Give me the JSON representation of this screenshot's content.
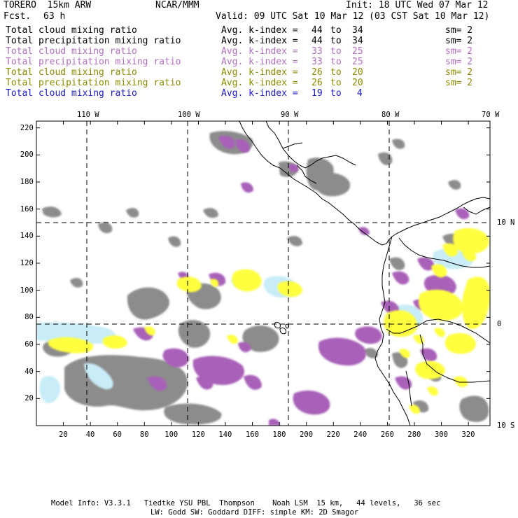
{
  "header": {
    "model": "TORERO  15km ARW",
    "center": "NCAR/MMM",
    "init": "Init: 18 UTC Wed 07 Mar 12",
    "fcst_label": "Fcst.",
    "fcst_value": "63 h",
    "valid": "Valid: 09 UTC Sat 10 Mar 12 (03 CST Sat 10 Mar 12)"
  },
  "legend": [
    {
      "field": "Total cloud mixing ratio",
      "k": "Avg. k-index =",
      "from": "44",
      "to_word": "to",
      "to": "34",
      "sm": "sm= 2",
      "color": "#000000"
    },
    {
      "field": "Total precipitation mixing ratio",
      "k": "Avg. k-index =",
      "from": "44",
      "to_word": "to",
      "to": "34",
      "sm": "sm= 2",
      "color": "#000000"
    },
    {
      "field": "Total cloud mixing ratio",
      "k": "Avg. k-index =",
      "from": "33",
      "to_word": "to",
      "to": "25",
      "sm": "sm= 2",
      "color": "#b070c0"
    },
    {
      "field": "Total precipitation mixing ratio",
      "k": "Avg. k-index =",
      "from": "33",
      "to_word": "to",
      "to": "25",
      "sm": "sm= 2",
      "color": "#b070c0"
    },
    {
      "field": "Total cloud mixing ratio",
      "k": "Avg. k-index =",
      "from": "26",
      "to_word": "to",
      "to": "20",
      "sm": "sm= 2",
      "color": "#8a8a00"
    },
    {
      "field": "Total precipitation mixing ratio",
      "k": "Avg. k-index =",
      "from": "26",
      "to_word": "to",
      "to": "20",
      "sm": "sm= 2",
      "color": "#8a8a00"
    },
    {
      "field": "Total cloud mixing ratio",
      "k": "Avg. k-index =",
      "from": "19",
      "to_word": "to",
      "to": "4",
      "sm": "",
      "color": "#1a1acc"
    }
  ],
  "map": {
    "x_grid_ticks": [
      20,
      40,
      60,
      80,
      100,
      120,
      140,
      160,
      180,
      200,
      220,
      240,
      260,
      280,
      300,
      320
    ],
    "y_grid_ticks": [
      20,
      40,
      60,
      80,
      100,
      120,
      140,
      160,
      180,
      200,
      220
    ],
    "x_range": [
      0,
      336
    ],
    "y_range": [
      0,
      225
    ],
    "lon_labels": [
      "110 W",
      "100 W",
      "90 W",
      "80 W",
      "70 W"
    ],
    "lon_grid_x": [
      40,
      112,
      184,
      260,
      336
    ],
    "lat_labels": [
      "10 N",
      "0",
      "10 S"
    ],
    "lat_grid_y": [
      150,
      76,
      2
    ],
    "colors": {
      "gray": "#8c8c8c",
      "purple": "#a860b8",
      "yellow": "#ffff40",
      "cyan": "#c8ecf8"
    }
  },
  "footer": {
    "line1": "Model Info: V3.3.1   Tiedtke YSU PBL  Thompson    Noah LSM  15 km,   44 levels,   36 sec",
    "line2": "LW: Godd SW: Goddard DIFF: simple KM: 2D Smagor"
  }
}
